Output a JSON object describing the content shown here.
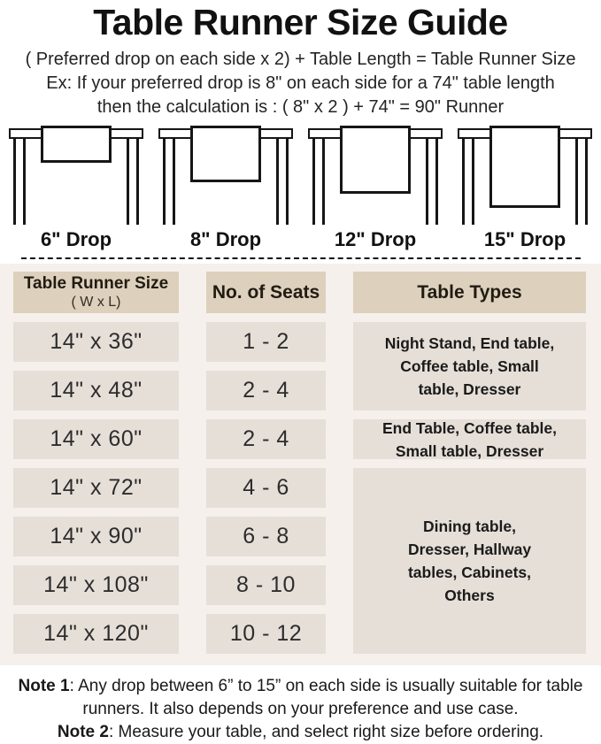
{
  "page": {
    "title": "Table Runner Size Guide",
    "formula_line": "( Preferred drop on each side x 2) + Table Length = Table Runner Size",
    "example_line1": "Ex: If your preferred drop is 8\" on each side for a 74\" table length",
    "example_line2": "then the calculation is : ( 8\" x 2 ) + 74\" = 90\" Runner"
  },
  "diagrams": [
    {
      "drop": 6,
      "label": "6\" Drop"
    },
    {
      "drop": 8,
      "label": "8\" Drop"
    },
    {
      "drop": 12,
      "label": "12\" Drop"
    },
    {
      "drop": 15,
      "label": "15\" Drop"
    }
  ],
  "size_table": {
    "headers": {
      "col1_line1": "Table Runner Size",
      "col1_line2": "( W x L)",
      "col2": "No. of Seats",
      "col3": "Table Types"
    },
    "rows": [
      {
        "size": "14\" x 36\"",
        "seats": "1 - 2"
      },
      {
        "size": "14\" x 48\"",
        "seats": "2 - 4"
      },
      {
        "size": "14\" x 60\"",
        "seats": "2 - 4"
      },
      {
        "size": "14\" x 72\"",
        "seats": "4 - 6"
      },
      {
        "size": "14\" x 90\"",
        "seats": "6 - 8"
      },
      {
        "size": "14\" x 108\"",
        "seats": "8 - 10"
      },
      {
        "size": "14\" x 120\"",
        "seats": "10 - 12"
      }
    ],
    "type_groups": [
      {
        "rows_covered": "14x36, 14x48",
        "lines": [
          "Night Stand, End table,",
          "Coffee table, Small",
          "table, Dresser"
        ]
      },
      {
        "rows_covered": "14x60",
        "lines": [
          "End Table, Coffee table,",
          "Small table, Dresser"
        ]
      },
      {
        "rows_covered": "14x72 - 14x120",
        "lines": [
          "Dining table,",
          "Dresser, Hallway",
          "tables, Cabinets,",
          "Others"
        ]
      }
    ]
  },
  "notes": [
    {
      "label": "Note 1",
      "text": ": Any drop between 6” to 15” on each side is usually suitable for table runners. It also depends on your preference and use case."
    },
    {
      "label": "Note 2",
      "text": ": Measure your table, and select right size before ordering."
    }
  ],
  "colors": {
    "header_bg": "#ddd0bd",
    "cell_bg": "#e6dfd8",
    "section_bg": "#f5f0ec",
    "ink": "#1d1d1d",
    "line": "#161616"
  }
}
